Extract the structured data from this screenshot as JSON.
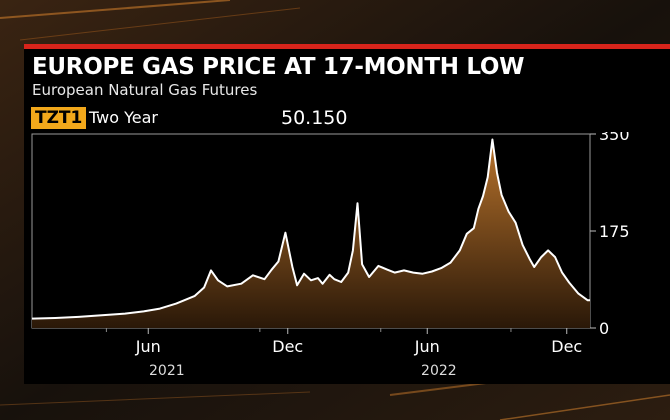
{
  "header": {
    "title": "EUROPE GAS PRICE AT 17-MONTH LOW",
    "subtitle": "European Natural Gas Futures"
  },
  "ticker": {
    "symbol": "TZT1",
    "period": "Two Year",
    "last_value": "50.150"
  },
  "colors": {
    "accent_bar": "#d8241b",
    "ticker_bg": "#f2a81b",
    "line": "#ffffff",
    "area_top": "#b8732c",
    "area_bottom": "#2a1808"
  },
  "chart_data": {
    "type": "area",
    "title": "EUROPE GAS PRICE AT 17-MONTH LOW",
    "subtitle": "European Natural Gas Futures",
    "x_unit": "months since Jan 2021",
    "xlim": [
      0,
      24
    ],
    "ylim": [
      0,
      350
    ],
    "yticks": [
      0,
      175,
      350
    ],
    "ytick_labels": [
      "0",
      "175",
      "350"
    ],
    "xticks": [
      {
        "x": 5.0,
        "label": "Jun"
      },
      {
        "x": 11.0,
        "label": "Dec"
      },
      {
        "x": 17.0,
        "label": "Jun"
      },
      {
        "x": 23.0,
        "label": "Dec"
      }
    ],
    "year_labels": [
      {
        "x": 5.8,
        "label": "2021"
      },
      {
        "x": 17.5,
        "label": "2022"
      }
    ],
    "grid": false,
    "legend": "none",
    "series": [
      {
        "name": "",
        "x": [
          0.0,
          1.0,
          2.0,
          3.0,
          4.0,
          4.8,
          5.5,
          6.2,
          7.0,
          7.4,
          7.7,
          8.0,
          8.4,
          9.0,
          9.5,
          10.0,
          10.3,
          10.6,
          10.9,
          11.2,
          11.4,
          11.7,
          12.0,
          12.3,
          12.5,
          12.8,
          13.0,
          13.3,
          13.6,
          13.8,
          14.0,
          14.2,
          14.5,
          14.9,
          15.3,
          15.6,
          16.0,
          16.4,
          16.8,
          17.2,
          17.6,
          18.0,
          18.4,
          18.7,
          19.0,
          19.2,
          19.4,
          19.6,
          19.8,
          20.0,
          20.2,
          20.5,
          20.8,
          21.1,
          21.4,
          21.6,
          21.9,
          22.2,
          22.5,
          22.8,
          23.1,
          23.5,
          23.9,
          24.0
        ],
        "values": [
          17,
          18,
          20,
          23,
          26,
          30,
          35,
          44,
          58,
          73,
          104,
          86,
          75,
          80,
          95,
          88,
          105,
          120,
          172,
          110,
          77,
          98,
          86,
          90,
          80,
          96,
          88,
          83,
          100,
          140,
          225,
          115,
          92,
          112,
          105,
          100,
          104,
          100,
          98,
          102,
          108,
          118,
          140,
          170,
          180,
          215,
          238,
          272,
          340,
          280,
          240,
          210,
          190,
          150,
          125,
          110,
          128,
          140,
          128,
          100,
          82,
          62,
          50,
          50
        ]
      }
    ]
  }
}
